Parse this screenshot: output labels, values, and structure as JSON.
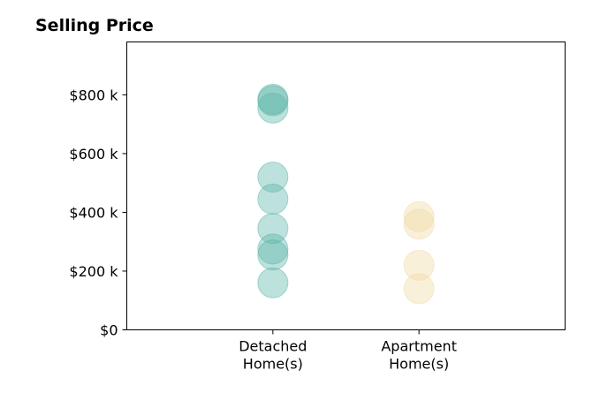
{
  "chart_data": {
    "type": "scatter",
    "title": "Selling Price",
    "xlabel": "",
    "ylabel": "",
    "categories": [
      [
        "Detached",
        "Home(s)"
      ],
      [
        "Apartment",
        "Home(s)"
      ]
    ],
    "xlim": [
      -1,
      2
    ],
    "ylim": [
      0,
      980000
    ],
    "yticks": [
      0,
      200000,
      400000,
      600000,
      800000
    ],
    "ytick_labels": [
      "$0",
      "$200 k",
      "$400 k",
      "$600 k",
      "$800 k"
    ],
    "grid": false,
    "legend": false,
    "series": [
      {
        "category": 0,
        "color": "#5bb5a8",
        "values": [
          160000,
          255000,
          275000,
          345000,
          445000,
          520000,
          755000,
          780000,
          785000
        ]
      },
      {
        "category": 1,
        "color": "#f1d9a2",
        "values": [
          140000,
          220000,
          360000,
          385000
        ]
      }
    ]
  }
}
